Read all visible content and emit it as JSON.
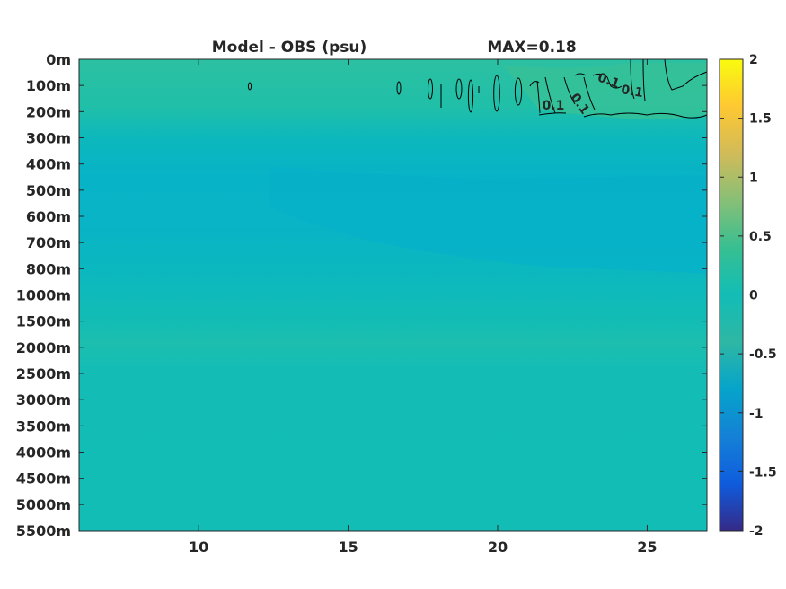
{
  "chart_data": {
    "type": "heatmap",
    "title": "Model - OBS (psu)",
    "max_label": "MAX=0.18",
    "xlabel": "",
    "ylabel": "",
    "x_ticks": [
      10,
      15,
      20,
      25
    ],
    "xlim": [
      6,
      27
    ],
    "y_tick_labels": [
      "0m",
      "100m",
      "200m",
      "300m",
      "400m",
      "500m",
      "600m",
      "700m",
      "800m",
      "1000m",
      "1500m",
      "2000m",
      "2500m",
      "3000m",
      "3500m",
      "4000m",
      "4500m",
      "5000m",
      "5500m"
    ],
    "colorbar": {
      "ticks": [
        2,
        1.5,
        1,
        0.5,
        0,
        -0.5,
        -1,
        -1.5,
        -2
      ],
      "tick_labels": [
        "2",
        "1.5",
        "1",
        "0.5",
        "0",
        "-0.5",
        "-1",
        "-1.5",
        "-2"
      ],
      "range": [
        -2,
        2
      ],
      "colormap": "parula"
    },
    "contour_labels": [
      "0.1",
      "0.1",
      "0.1",
      "0.1"
    ],
    "colors": {
      "background_field": "#12bdb6",
      "surface_warm": "#2ec09e",
      "subsurface_cool": "#0bb5c4",
      "contour": "#000000"
    },
    "grid": false
  }
}
